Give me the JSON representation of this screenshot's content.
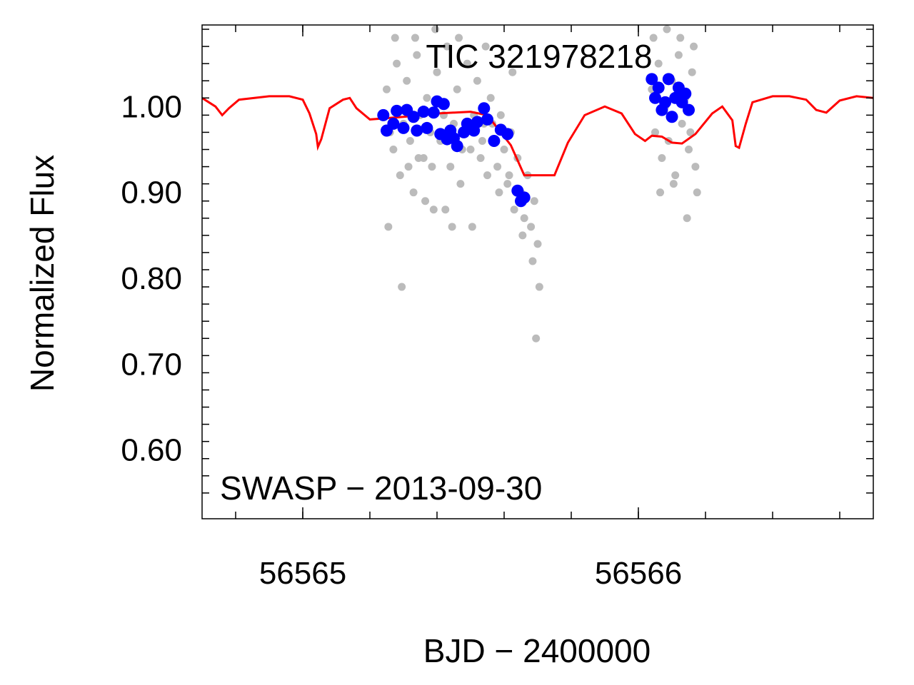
{
  "chart_data": {
    "type": "scatter",
    "title": "TIC 321978218",
    "annotation": "SWASP − 2013-09-30",
    "xlabel": "BJD − 2400000",
    "ylabel": "Normalized Flux",
    "xlim": [
      56564.7,
      56566.7
    ],
    "ylim": [
      0.52,
      1.095
    ],
    "x_ticks": [
      {
        "value": 56565,
        "label": "56565"
      },
      {
        "value": 56566,
        "label": "56566"
      }
    ],
    "y_ticks": [
      {
        "value": 1.0,
        "label": "1.00"
      },
      {
        "value": 0.9,
        "label": "0.90"
      },
      {
        "value": 0.8,
        "label": "0.80"
      },
      {
        "value": 0.7,
        "label": "0.70"
      },
      {
        "value": 0.6,
        "label": "0.60"
      }
    ],
    "grid": false,
    "colors": {
      "raw": "#bbbbbb",
      "binned": "#0000ff",
      "model": "#ff0000",
      "axis": "#000000"
    },
    "series": [
      {
        "kind": "raw",
        "points": [
          [
            56565.24,
            0.99
          ],
          [
            56565.25,
            1.02
          ],
          [
            56565.26,
            0.97
          ],
          [
            56565.27,
            0.95
          ],
          [
            56565.28,
            1.05
          ],
          [
            56565.29,
            0.92
          ],
          [
            56565.3,
            0.98
          ],
          [
            56565.31,
            1.03
          ],
          [
            56565.32,
            0.96
          ],
          [
            56565.33,
            0.9
          ],
          [
            56565.34,
            1.06
          ],
          [
            56565.35,
            0.99
          ],
          [
            56565.36,
            0.94
          ],
          [
            56565.37,
            1.01
          ],
          [
            56565.38,
            0.97
          ],
          [
            56565.39,
            0.88
          ],
          [
            56565.4,
            1.04
          ],
          [
            56565.41,
            0.96
          ],
          [
            56565.42,
            0.99
          ],
          [
            56565.43,
            1.07
          ],
          [
            56565.44,
            0.93
          ],
          [
            56565.45,
            0.98
          ],
          [
            56565.46,
            1.02
          ],
          [
            56565.47,
            0.91
          ],
          [
            56565.48,
            0.97
          ],
          [
            56565.49,
            1.05
          ],
          [
            56565.5,
            0.95
          ],
          [
            56565.51,
            0.99
          ],
          [
            56565.52,
            1.03
          ],
          [
            56565.53,
            0.94
          ],
          [
            56565.54,
            0.98
          ],
          [
            56565.55,
            0.92
          ],
          [
            56565.56,
            1.01
          ],
          [
            56565.57,
            0.96
          ],
          [
            56565.58,
            0.93
          ],
          [
            56565.59,
            0.99
          ],
          [
            56565.6,
            0.95
          ],
          [
            56565.61,
            0.91
          ],
          [
            56565.62,
            0.97
          ],
          [
            56565.63,
            0.88
          ],
          [
            56565.64,
            0.94
          ],
          [
            56565.65,
            0.9
          ],
          [
            56565.66,
            0.87
          ],
          [
            56565.67,
            0.92
          ],
          [
            56565.68,
            0.86
          ],
          [
            56565.69,
            0.89
          ],
          [
            56565.7,
            0.84
          ],
          [
            56565.255,
            0.86
          ],
          [
            56565.275,
            1.08
          ],
          [
            56565.315,
            0.93
          ],
          [
            56565.335,
            1.08
          ],
          [
            56565.365,
            0.89
          ],
          [
            56565.395,
            1.09
          ],
          [
            56565.425,
            0.88
          ],
          [
            56565.465,
            1.08
          ],
          [
            56565.505,
            0.86
          ],
          [
            56565.545,
            1.07
          ],
          [
            56565.585,
            0.9
          ],
          [
            56565.625,
            1.04
          ],
          [
            56565.655,
            0.85
          ],
          [
            56565.685,
            0.82
          ],
          [
            56565.705,
            0.79
          ],
          [
            56565.695,
            0.73
          ],
          [
            56565.295,
            0.79
          ],
          [
            56565.445,
            0.86
          ],
          [
            56565.345,
            0.94
          ],
          [
            56565.385,
            0.93
          ],
          [
            56565.475,
            0.95
          ],
          [
            56565.535,
            0.96
          ],
          [
            56565.565,
            0.98
          ],
          [
            56565.615,
            0.92
          ],
          [
            56566.04,
            1.02
          ],
          [
            56566.05,
            0.97
          ],
          [
            56566.06,
            1.05
          ],
          [
            56566.07,
            0.94
          ],
          [
            56566.08,
            1.0
          ],
          [
            56566.09,
            0.96
          ],
          [
            56566.1,
            1.03
          ],
          [
            56566.11,
            0.92
          ],
          [
            56566.12,
            1.06
          ],
          [
            56566.13,
            0.98
          ],
          [
            56566.14,
            1.01
          ],
          [
            56566.15,
            0.95
          ],
          [
            56566.16,
            1.04
          ],
          [
            56566.17,
            0.93
          ],
          [
            56566.045,
            1.08
          ],
          [
            56566.065,
            0.9
          ],
          [
            56566.085,
            1.09
          ],
          [
            56566.105,
            0.91
          ],
          [
            56566.125,
            1.08
          ],
          [
            56566.145,
            0.87
          ],
          [
            56566.165,
            1.07
          ],
          [
            56566.175,
            0.9
          ],
          [
            56566.095,
            0.99
          ],
          [
            56566.155,
            0.97
          ]
        ]
      },
      {
        "kind": "binned",
        "points": [
          [
            56565.24,
            0.99
          ],
          [
            56565.25,
            0.972
          ],
          [
            56565.27,
            0.98
          ],
          [
            56565.28,
            0.995
          ],
          [
            56565.3,
            0.975
          ],
          [
            56565.31,
            0.996
          ],
          [
            56565.33,
            0.988
          ],
          [
            56565.34,
            0.972
          ],
          [
            56565.36,
            0.994
          ],
          [
            56565.37,
            0.975
          ],
          [
            56565.39,
            0.993
          ],
          [
            56565.4,
            1.006
          ],
          [
            56565.42,
            1.003
          ],
          [
            56565.41,
            0.968
          ],
          [
            56565.43,
            0.962
          ],
          [
            56565.44,
            0.972
          ],
          [
            56565.45,
            0.963
          ],
          [
            56565.46,
            0.954
          ],
          [
            56565.48,
            0.97
          ],
          [
            56565.49,
            0.98
          ],
          [
            56565.51,
            0.972
          ],
          [
            56565.52,
            0.982
          ],
          [
            56565.54,
            0.998
          ],
          [
            56565.55,
            0.985
          ],
          [
            56565.57,
            0.96
          ],
          [
            56565.59,
            0.973
          ],
          [
            56565.61,
            0.968
          ],
          [
            56565.64,
            0.902
          ],
          [
            56565.65,
            0.89
          ],
          [
            56565.66,
            0.894
          ],
          [
            56566.04,
            1.032
          ],
          [
            56566.05,
            1.01
          ],
          [
            56566.06,
            1.022
          ],
          [
            56566.07,
            0.996
          ],
          [
            56566.08,
            1.005
          ],
          [
            56566.09,
            1.032
          ],
          [
            56566.1,
            0.988
          ],
          [
            56566.11,
            1.01
          ],
          [
            56566.12,
            1.022
          ],
          [
            56566.13,
            1.005
          ],
          [
            56566.14,
            1.015
          ],
          [
            56566.15,
            0.996
          ]
        ]
      },
      {
        "kind": "model",
        "points": [
          [
            56564.7,
            1.01
          ],
          [
            56564.74,
            1.0
          ],
          [
            56564.76,
            0.99
          ],
          [
            56564.78,
            0.998
          ],
          [
            56564.81,
            1.008
          ],
          [
            56564.9,
            1.012
          ],
          [
            56564.96,
            1.012
          ],
          [
            56565.0,
            1.008
          ],
          [
            56565.02,
            0.992
          ],
          [
            56565.04,
            0.968
          ],
          [
            56565.045,
            0.953
          ],
          [
            56565.055,
            0.962
          ],
          [
            56565.08,
            0.998
          ],
          [
            56565.12,
            1.008
          ],
          [
            56565.14,
            1.01
          ],
          [
            56565.16,
            0.998
          ],
          [
            56565.2,
            0.985
          ],
          [
            56565.3,
            0.988
          ],
          [
            56565.4,
            0.992
          ],
          [
            56565.5,
            0.994
          ],
          [
            56565.55,
            0.99
          ],
          [
            56565.62,
            0.955
          ],
          [
            56565.66,
            0.92
          ],
          [
            56565.75,
            0.92
          ],
          [
            56565.79,
            0.958
          ],
          [
            56565.84,
            0.99
          ],
          [
            56565.9,
            1.0
          ],
          [
            56565.95,
            0.992
          ],
          [
            56565.99,
            0.968
          ],
          [
            56566.02,
            0.96
          ],
          [
            56566.04,
            0.966
          ],
          [
            56566.07,
            0.965
          ],
          [
            56566.1,
            0.958
          ],
          [
            56566.13,
            0.957
          ],
          [
            56566.17,
            0.968
          ],
          [
            56566.22,
            0.992
          ],
          [
            56566.25,
            1.0
          ],
          [
            56566.28,
            0.984
          ],
          [
            56566.29,
            0.954
          ],
          [
            56566.3,
            0.952
          ],
          [
            56566.32,
            0.98
          ],
          [
            56566.34,
            1.005
          ],
          [
            56566.4,
            1.012
          ],
          [
            56566.45,
            1.012
          ],
          [
            56566.5,
            1.008
          ],
          [
            56566.53,
            0.996
          ],
          [
            56566.56,
            0.993
          ],
          [
            56566.6,
            1.007
          ],
          [
            56566.65,
            1.012
          ],
          [
            56566.7,
            1.01
          ]
        ]
      }
    ]
  }
}
